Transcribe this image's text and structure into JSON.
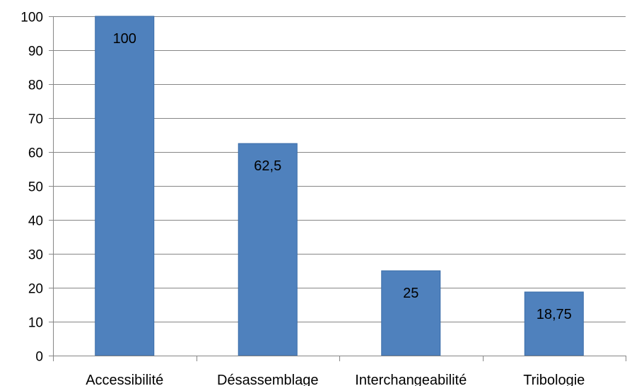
{
  "chart_data": {
    "type": "bar",
    "categories": [
      "Accessibilité",
      "Désassemblage",
      "Interchangeabilité",
      "Tribologie"
    ],
    "values": [
      100,
      62.5,
      25,
      18.75
    ],
    "data_labels": [
      "100",
      "62,5",
      "25",
      "18,75"
    ],
    "title": "",
    "xlabel": "",
    "ylabel": "",
    "ylim": [
      0,
      100
    ],
    "y_ticks": [
      0,
      10,
      20,
      30,
      40,
      50,
      60,
      70,
      80,
      90,
      100
    ],
    "y_tick_labels": [
      "0",
      "10",
      "20",
      "30",
      "40",
      "50",
      "60",
      "70",
      "80",
      "90",
      "100"
    ],
    "grid": true,
    "legend": "none",
    "colors": {
      "bar": "#4F81BD",
      "bar_edge": "#3A6CA8",
      "grid": "#868686",
      "axis": "#868686"
    }
  }
}
